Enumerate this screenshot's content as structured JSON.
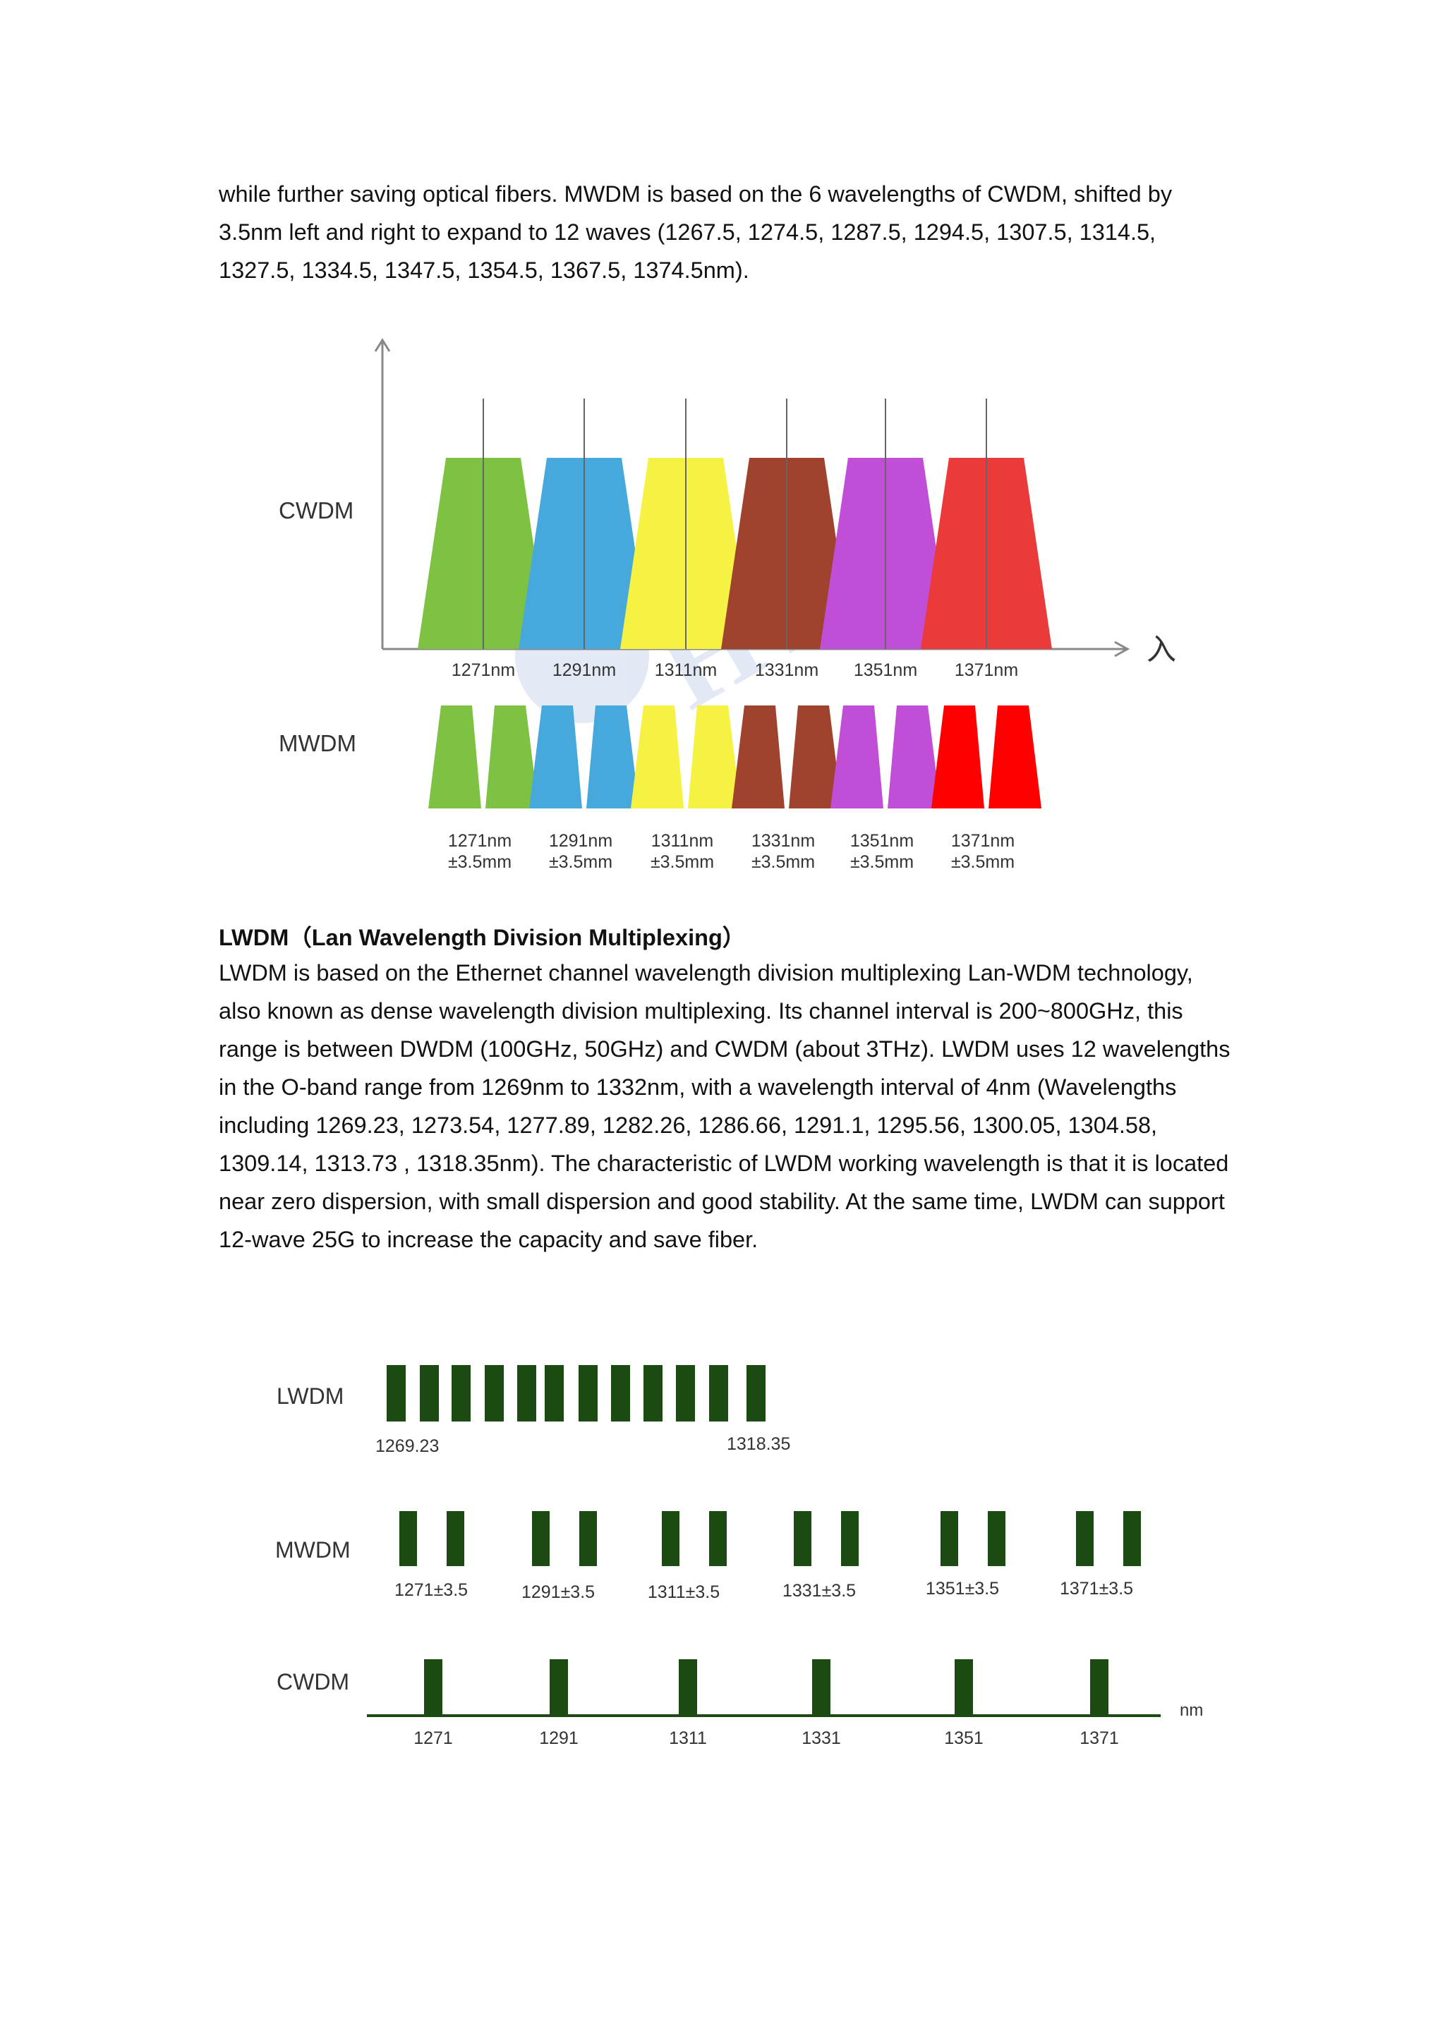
{
  "paragraph_1": "while further saving optical fibers. MWDM is based on the 6 wavelengths of CWDM, shifted by 3.5nm left and right to expand to 12 waves (1267.5, 1274.5, 1287.5, 1294.5, 1307.5, 1314.5, 1327.5, 1334.5, 1347.5, 1354.5, 1367.5, 1374.5nm).",
  "figure_1": {
    "cwdm_label": "CWDM",
    "mwdm_label": "MWDM",
    "axis_symbol": "入",
    "watermark": "HYC",
    "channel_colors": [
      "#7dc242",
      "#47a8dc",
      "#f5f243",
      "#a0432e",
      "#c04ed6",
      "#ea3a39"
    ],
    "mwdm_colors": [
      "#7dc242",
      "#47a8dc",
      "#f5f243",
      "#a0432e",
      "#c04ed6",
      "#ff0000"
    ],
    "cwdm_channels": [
      "1271nm",
      "1291nm",
      "1311nm",
      "1331nm",
      "1351nm",
      "1371nm"
    ],
    "mwdm_channels": [
      {
        "nm": "1271nm",
        "tol": "±3.5mm"
      },
      {
        "nm": "1291nm",
        "tol": "±3.5mm"
      },
      {
        "nm": "1311nm",
        "tol": "±3.5mm"
      },
      {
        "nm": "1331nm",
        "tol": "±3.5mm"
      },
      {
        "nm": "1351nm",
        "tol": "±3.5mm"
      },
      {
        "nm": "1371nm",
        "tol": "±3.5mm"
      }
    ]
  },
  "heading": "LWDM（Lan Wavelength Division Multiplexing）",
  "paragraph_2": "LWDM is based on the Ethernet channel wavelength division multiplexing Lan-WDM technology, also known as dense wavelength division multiplexing. Its channel interval is 200~800GHz, this range is between DWDM (100GHz, 50GHz) and CWDM (about 3THz). LWDM uses 12 wavelengths in the O-band range from 1269nm to 1332nm, with a wavelength interval of 4nm (Wavelengths including 1269.23, 1273.54, 1277.89, 1282.26, 1286.66, 1291.1, 1295.56, 1300.05, 1304.58, 1309.14, 1313.73 , 1318.35nm). The characteristic of LWDM working wavelength is that it is located near zero dispersion, with small dispersion and good stability. At the same time, LWDM can support 12-wave 25G to increase the capacity and save fiber.",
  "figure_2": {
    "bar_color": "#1b4a12",
    "lwdm_label": "LWDM",
    "mwdm_label": "MWDM",
    "cwdm_label": "CWDM",
    "lwdm_bar_count": 12,
    "lwdm_start": "1269.23",
    "lwdm_end": "1318.35",
    "mwdm_labels": [
      "1271±3.5",
      "1291±3.5",
      "1311±3.5",
      "1331±3.5",
      "1351±3.5",
      "1371±3.5"
    ],
    "cwdm_labels": [
      "1271",
      "1291",
      "1311",
      "1331",
      "1351",
      "1371"
    ],
    "unit": "nm"
  }
}
